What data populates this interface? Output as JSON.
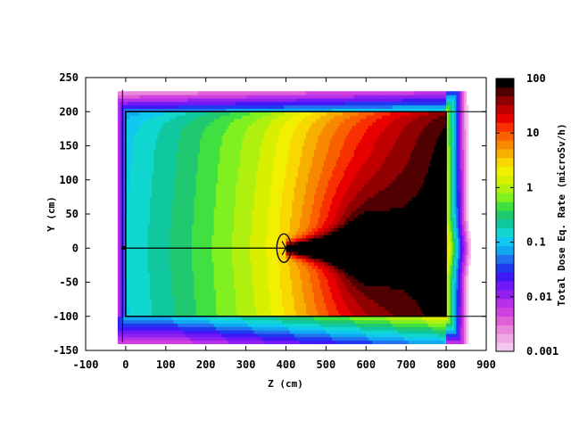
{
  "chart_data": {
    "type": "heatmap",
    "title": "",
    "xlabel": "Z (cm)",
    "ylabel": "Y (cm)",
    "xlim": [
      -100,
      900
    ],
    "ylim": [
      -150,
      250
    ],
    "x_ticks": [
      -100,
      0,
      100,
      200,
      300,
      400,
      500,
      600,
      700,
      800,
      900
    ],
    "y_ticks": [
      -150,
      -100,
      -50,
      0,
      50,
      100,
      150,
      200,
      250
    ],
    "colorbar": {
      "label": "Total Dose Eq. Rate (microSv/h)",
      "scale": "log",
      "range": [
        0.001,
        100
      ],
      "ticks": [
        "0.001",
        "0.01",
        "0.1",
        "1",
        "10",
        "100"
      ],
      "colors": [
        "#f4c8ec",
        "#f0a8e4",
        "#e888dc",
        "#e060d8",
        "#d040e0",
        "#b830e8",
        "#9020f0",
        "#7018f8",
        "#4018f8",
        "#2038f0",
        "#2070f0",
        "#10a8f0",
        "#10c8f0",
        "#10d8d0",
        "#10c8a0",
        "#20c870",
        "#40e040",
        "#80f020",
        "#b0f010",
        "#d8f000",
        "#f0f000",
        "#f8d800",
        "#f8b000",
        "#f88800",
        "#f86000",
        "#f83000",
        "#e80000",
        "#c00000",
        "#900000",
        "#500000",
        "#000000"
      ]
    },
    "structures": {
      "wall_outline": {
        "z": [
          0,
          800
        ],
        "y": [
          -100,
          200
        ]
      },
      "beam_line": {
        "z": [
          -10,
          600
        ],
        "y": 0
      },
      "target_ellipse": {
        "z": 395,
        "y": 0
      },
      "dump_box": {
        "z": [
          595,
          612
        ],
        "y": [
          -8,
          12
        ]
      }
    },
    "field_regions": [
      {
        "zone": "outer_shell",
        "dose_uSv_h": 0.01
      },
      {
        "zone": "upstream_hall",
        "dose_uSv_h": 0.1
      },
      {
        "zone": "mid_hall",
        "dose_uSv_h": 0.6
      },
      {
        "zone": "downstream_hall",
        "dose_uSv_h": 3
      },
      {
        "zone": "beam_core",
        "dose_uSv_h": 100
      }
    ]
  }
}
